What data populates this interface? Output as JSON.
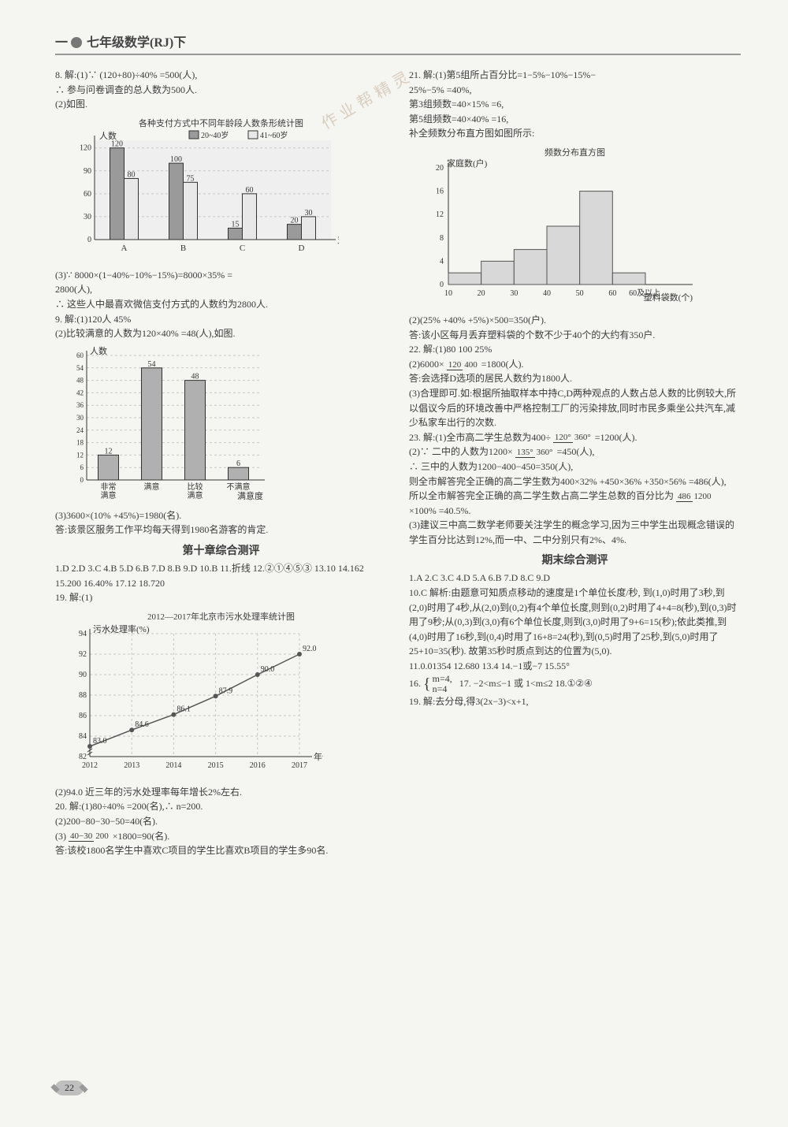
{
  "header": {
    "prefix": "一",
    "title": "七年级数学(RJ)下"
  },
  "watermark": "作业帮精灵",
  "subtitles": {
    "chap10": "第十章综合测评",
    "final": "期末综合测评"
  },
  "left": {
    "q8": {
      "l1": "8. 解:(1)∵ (120+80)÷40% =500(人),",
      "l2": "∴ 参与问卷调查的总人数为500人.",
      "l3": "(2)如图.",
      "l4": "(3)∵ 8000×(1−40%−10%−15%)=8000×35% =",
      "l5": "2800(人),",
      "l6": "∴ 这些人中最喜欢微信支付方式的人数约为2800人."
    },
    "chart1": {
      "type": "bar",
      "title": "各种支付方式中不同年龄段人数条形统计图",
      "ylabel": "人数",
      "xlabel": "支付方式",
      "legend": [
        "20~40岁",
        "41~60岁"
      ],
      "legend_colors": [
        "#9a9a9a",
        "#e8e8e8"
      ],
      "categories": [
        "A",
        "B",
        "C",
        "D"
      ],
      "series1": [
        120,
        100,
        15,
        20
      ],
      "series2": [
        80,
        75,
        60,
        30
      ],
      "labels1": [
        "120",
        "100",
        "15",
        "20"
      ],
      "labels2": [
        "80",
        "75",
        "60",
        "30"
      ],
      "ylim": [
        0,
        130
      ],
      "yticks": [
        0,
        30,
        60,
        90,
        120
      ],
      "grid_color": "#c7c7c7",
      "bg": "#efefef"
    },
    "q9": {
      "l1": "9. 解:(1)120人  45%",
      "l2": "(2)比较满意的人数为120×40% =48(人),如图.",
      "l3": "(3)3600×(10% +45%)=1980(名).",
      "l4": "答:该景区服务工作平均每天得到1980名游客的肯定."
    },
    "chart2": {
      "type": "bar",
      "ylabel": "人数",
      "xlabel": "满意度",
      "categories": [
        "非常\\n满意",
        "满意",
        "比较\\n满意",
        "不满意"
      ],
      "values": [
        12,
        54,
        48,
        6
      ],
      "labels": [
        "12",
        "54",
        "48",
        "6"
      ],
      "ylim": [
        0,
        60
      ],
      "yticks": [
        0,
        6,
        12,
        18,
        24,
        30,
        36,
        42,
        48,
        54,
        60
      ],
      "bar_color": "#b0b0b0",
      "grid_color": "#c7c7c7"
    },
    "chap10_ans": "1.D  2.D  3.C  4.B  5.D  6.B  7.D  8.B  9.D  10.B  11.折线  12.②①④⑤③  13.10  14.162  15.200  16.40%  17.12  18.720",
    "q19": {
      "l1": "19. 解:(1)",
      "l2": "(2)94.0  近三年的污水处理率每年增长2%左右."
    },
    "chart3": {
      "type": "line",
      "title": "2012—2017年北京市污水处理率统计图",
      "ylabel": "污水处理率(%)",
      "xlabel": "年份",
      "categories": [
        "2012",
        "2013",
        "2014",
        "2015",
        "2016",
        "2017"
      ],
      "values": [
        83.0,
        84.6,
        86.1,
        87.9,
        90.0,
        92.0
      ],
      "labels": [
        "83.0",
        "84.6",
        "86.1",
        "87.9",
        "90.0",
        "92.0"
      ],
      "ylim": [
        82,
        94
      ],
      "yticks": [
        82,
        84,
        86,
        88,
        90,
        92,
        94
      ],
      "line_color": "#555",
      "grid_color": "#c7c7c7"
    },
    "q20": {
      "l1": "20. 解:(1)80÷40% =200(名),∴ n=200.",
      "l2": "(2)200−80−30−50=40(名).",
      "l3_pre": "(3)",
      "l3_num": "40−30",
      "l3_den": "200",
      "l3_mid": " ×1800=90(名).",
      "l4": "答:该校1800名学生中喜欢C项目的学生比喜欢B项目的学生多90名."
    }
  },
  "right": {
    "q21": {
      "l1": "21. 解:(1)第5组所占百分比=1−5%−10%−15%−",
      "l2": "25%−5% =40%,",
      "l3": "第3组频数=40×15% =6,",
      "l4": "第5组频数=40×40% =16,",
      "l5": "补全频数分布直方图如图所示:",
      "l6": "(2)(25% +40% +5%)×500=350(户).",
      "l7": "答:该小区每月丢弃塑料袋的个数不少于40个的大约有350户."
    },
    "chart4": {
      "type": "histogram",
      "title": "频数分布直方图",
      "ylabel": "家庭数(户)",
      "xlabel": "塑料袋数(个)",
      "x_extra": "60及以上",
      "edges": [
        10,
        20,
        30,
        40,
        50,
        60
      ],
      "values": [
        2,
        4,
        6,
        10,
        16,
        2
      ],
      "ylim": [
        0,
        20
      ],
      "yticks": [
        0,
        4,
        8,
        12,
        16,
        20
      ],
      "bar_color": "#d8d8d8",
      "border_color": "#555",
      "grid_color": "#cfcfcf"
    },
    "q22": {
      "l1": "22. 解:(1)80  100  25%",
      "l2_pre": "(2)6000×",
      "l2_num": "120",
      "l2_den": "400",
      "l2_post": "=1800(人).",
      "l3": "答:会选择D选项的居民人数约为1800人.",
      "l4": "(3)合理即可.如:根据所抽取样本中持C,D两种观点的人数占总人数的比例较大,所以倡议今后的环境改善中严格控制工厂的污染排放,同时市民多乘坐公共汽车,减少私家车出行的次数."
    },
    "q23": {
      "l1_pre": "23. 解:(1)全市高二学生总数为400÷",
      "l1_num": "120°",
      "l1_den": "360°",
      "l1_post": "=1200(人).",
      "l2_pre": "(2)∵ 二中的人数为1200×",
      "l2_num": "135°",
      "l2_den": "360°",
      "l2_post": "=450(人),",
      "l3": "∴ 三中的人数为1200−400−450=350(人),",
      "l4": "则全市解答完全正确的高二学生数为400×32% +450×36% +350×56% =486(人),",
      "l5_pre": "所以全市解答完全正确的高二学生数占高二学生总数的百分比为",
      "l5_num": "486",
      "l5_den": "1200",
      "l5_post": "×100% =40.5%.",
      "l6": "(3)建议三中高二数学老师要关注学生的概念学习,因为三中学生出现概念错误的学生百分比达到12%,而一中、二中分别只有2%、4%."
    },
    "final_ans": "1.A  2.C  3.C  4.D  5.A  6.B  7.D  8.C  9.D",
    "q10": "10.C  解析:由题意可知质点移动的速度是1个单位长度/秒, 到(1,0)时用了3秒,到(2,0)时用了4秒,从(2,0)到(0,2)有4个单位长度,则到(0,2)时用了4+4=8(秒),到(0,3)时用了9秒;从(0,3)到(3,0)有6个单位长度,则到(3,0)时用了9+6=15(秒);依此类推,到(4,0)时用了16秒,到(0,4)时用了16+8=24(秒),到(0,5)时用了25秒,到(5,0)时用了25+10=35(秒). 故第35秒时质点到达的位置为(5,0).",
    "more": "11.0.01354  12.680  13.4  14.−1或−7  15.55°",
    "q16_a": "m=4,",
    "q16_b": "n=4",
    "q1718": "17. −2<m≤−1 或 1<m≤2  18.①②④",
    "q19": "19. 解:去分母,得3(2x−3)<x+1,"
  },
  "page_number": "22"
}
